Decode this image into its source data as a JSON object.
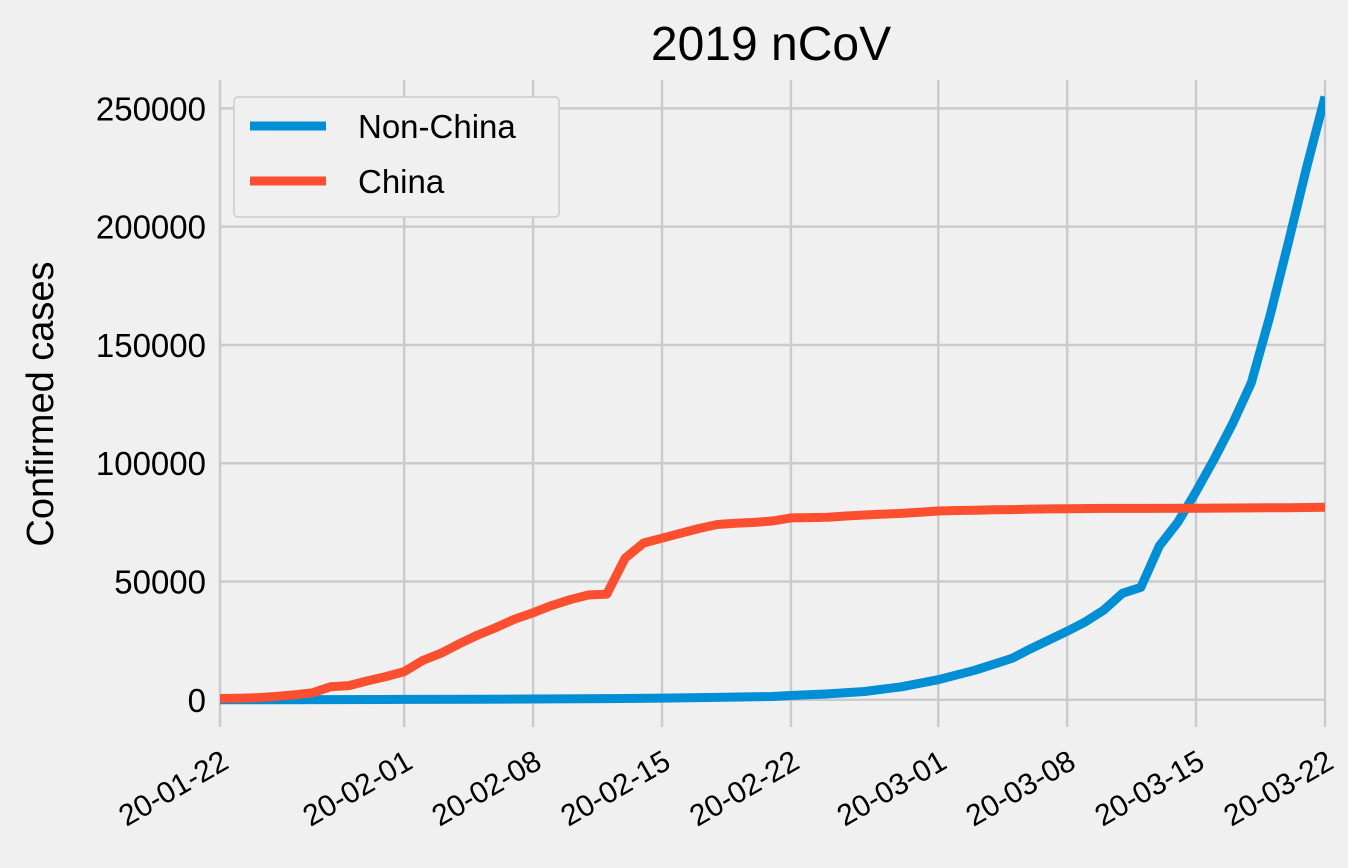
{
  "chart_data": {
    "type": "line",
    "title": "2019 nCoV",
    "xlabel": "",
    "ylabel": "Confirmed cases",
    "x_start": "20-01-22",
    "x_tick_labels": [
      "20-01-22",
      "20-02-01",
      "20-02-08",
      "20-02-15",
      "20-02-22",
      "20-03-01",
      "20-03-08",
      "20-03-15",
      "20-03-22"
    ],
    "x_tick_dates": [
      "20-01-22",
      "20-02-01",
      "20-02-08",
      "20-02-15",
      "20-02-22",
      "20-03-01",
      "20-03-08",
      "20-03-15",
      "20-03-22"
    ],
    "y_ticks": [
      0,
      50000,
      100000,
      150000,
      200000,
      250000
    ],
    "y_tick_labels": [
      "0",
      "50000",
      "100000",
      "150000",
      "200000",
      "250000"
    ],
    "xlim": [
      "20-01-22",
      "20-03-22"
    ],
    "ylim": [
      -11500,
      262000
    ],
    "grid": true,
    "legend_position": "top-left",
    "series": [
      {
        "name": "Non-China",
        "color": "#008fd5",
        "points": [
          [
            "20-01-22",
            10
          ],
          [
            "20-01-25",
            40
          ],
          [
            "20-01-28",
            90
          ],
          [
            "20-02-01",
            150
          ],
          [
            "20-02-05",
            250
          ],
          [
            "20-02-08",
            350
          ],
          [
            "20-02-12",
            500
          ],
          [
            "20-02-15",
            700
          ],
          [
            "20-02-18",
            1000
          ],
          [
            "20-02-21",
            1400
          ],
          [
            "20-02-22",
            1800
          ],
          [
            "20-02-24",
            2500
          ],
          [
            "20-02-26",
            3500
          ],
          [
            "20-02-28",
            5500
          ],
          [
            "20-03-01",
            8500
          ],
          [
            "20-03-03",
            12500
          ],
          [
            "20-03-05",
            17500
          ],
          [
            "20-03-06",
            21500
          ],
          [
            "20-03-08",
            29000
          ],
          [
            "20-03-09",
            33000
          ],
          [
            "20-03-10",
            38000
          ],
          [
            "20-03-11",
            45000
          ],
          [
            "20-03-12",
            47500
          ],
          [
            "20-03-13",
            65000
          ],
          [
            "20-03-14",
            75000
          ],
          [
            "20-03-15",
            88000
          ],
          [
            "20-03-16",
            102000
          ],
          [
            "20-03-17",
            117000
          ],
          [
            "20-03-18",
            134000
          ],
          [
            "20-03-19",
            162000
          ],
          [
            "20-03-20",
            193000
          ],
          [
            "20-03-21",
            225000
          ],
          [
            "20-03-22",
            255000
          ]
        ]
      },
      {
        "name": "China",
        "color": "#fc4f30",
        "points": [
          [
            "20-01-22",
            550
          ],
          [
            "20-01-23",
            650
          ],
          [
            "20-01-24",
            900
          ],
          [
            "20-01-25",
            1400
          ],
          [
            "20-01-26",
            2100
          ],
          [
            "20-01-27",
            2900
          ],
          [
            "20-01-28",
            5500
          ],
          [
            "20-01-29",
            6000
          ],
          [
            "20-01-30",
            8000
          ],
          [
            "20-01-31",
            9800
          ],
          [
            "20-02-01",
            11900
          ],
          [
            "20-02-02",
            16600
          ],
          [
            "20-02-03",
            19700
          ],
          [
            "20-02-04",
            23700
          ],
          [
            "20-02-05",
            27400
          ],
          [
            "20-02-06",
            30600
          ],
          [
            "20-02-07",
            34100
          ],
          [
            "20-02-08",
            36800
          ],
          [
            "20-02-09",
            39800
          ],
          [
            "20-02-10",
            42300
          ],
          [
            "20-02-11",
            44300
          ],
          [
            "20-02-12",
            44700
          ],
          [
            "20-02-13",
            59900
          ],
          [
            "20-02-14",
            66300
          ],
          [
            "20-02-15",
            68300
          ],
          [
            "20-02-16",
            70400
          ],
          [
            "20-02-17",
            72400
          ],
          [
            "20-02-18",
            74100
          ],
          [
            "20-02-19",
            74600
          ],
          [
            "20-02-20",
            75000
          ],
          [
            "20-02-21",
            75600
          ],
          [
            "20-02-22",
            76900
          ],
          [
            "20-02-23",
            77000
          ],
          [
            "20-02-24",
            77200
          ],
          [
            "20-02-25",
            77700
          ],
          [
            "20-02-26",
            78100
          ],
          [
            "20-02-27",
            78500
          ],
          [
            "20-02-28",
            78800
          ],
          [
            "20-02-29",
            79300
          ],
          [
            "20-03-01",
            79800
          ],
          [
            "20-03-02",
            80000
          ],
          [
            "20-03-03",
            80100
          ],
          [
            "20-03-04",
            80300
          ],
          [
            "20-03-05",
            80400
          ],
          [
            "20-03-06",
            80600
          ],
          [
            "20-03-07",
            80700
          ],
          [
            "20-03-08",
            80800
          ],
          [
            "20-03-10",
            80900
          ],
          [
            "20-03-12",
            80900
          ],
          [
            "20-03-15",
            81000
          ],
          [
            "20-03-18",
            81100
          ],
          [
            "20-03-20",
            81200
          ],
          [
            "20-03-22",
            81400
          ]
        ]
      }
    ]
  }
}
